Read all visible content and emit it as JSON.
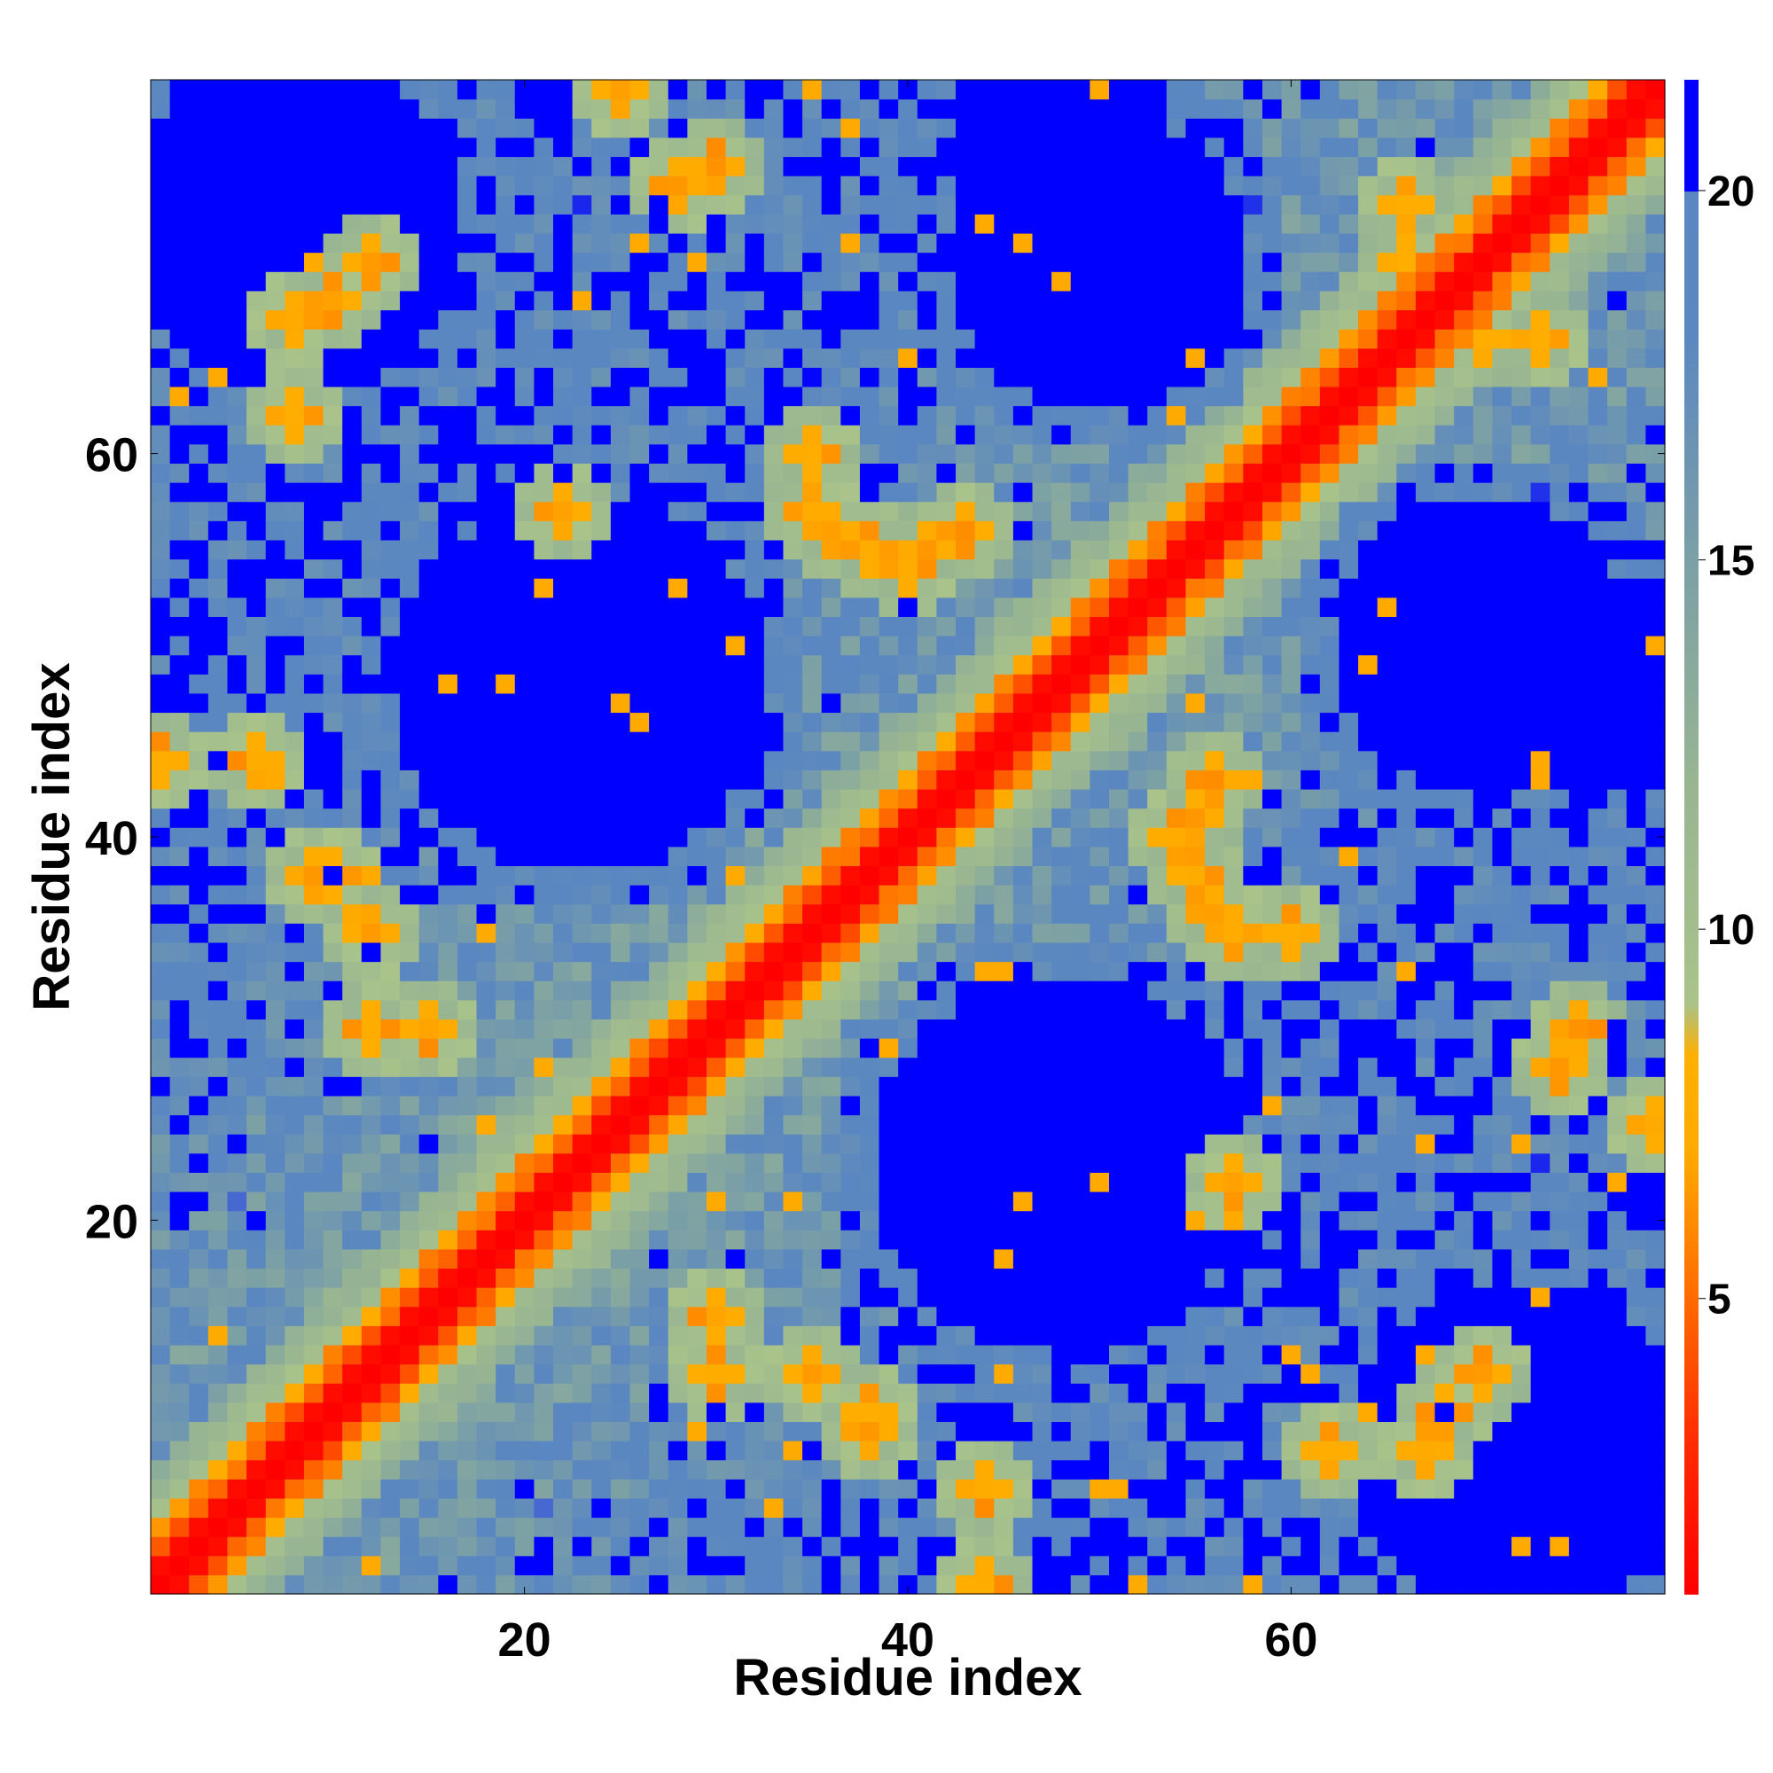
{
  "chart_data": {
    "type": "heatmap",
    "title": "",
    "xlabel": "Residue index",
    "ylabel": "Residue index",
    "n_residues": 79,
    "xlim": [
      1,
      79
    ],
    "ylim": [
      1,
      79
    ],
    "x_ticks": [
      20,
      40,
      60
    ],
    "y_ticks": [
      20,
      40,
      60
    ],
    "x_tick_labels": [
      "20",
      "40",
      "60"
    ],
    "y_tick_labels": [
      "20",
      "40",
      "60"
    ],
    "symmetric": true,
    "values_description_note": "",
    "colorbar": {
      "min": 1,
      "max": 21.5,
      "ticks": [
        5,
        10,
        15,
        20
      ],
      "tick_labels": [
        "5",
        "10",
        "15",
        "20"
      ],
      "saturate_above": 20,
      "colors": {
        "contact": "#ff0000",
        "near": "#ff6600",
        "close": "#ffa500",
        "mid": "#a3bf86",
        "far": "#5c88c0",
        "very_far": "#0000ff"
      },
      "stops": [
        {
          "value": 1,
          "color": "#ff0000"
        },
        {
          "value": 3,
          "color": "#ff2a00"
        },
        {
          "value": 5,
          "color": "#ff6a00"
        },
        {
          "value": 7,
          "color": "#ffaa00"
        },
        {
          "value": 8.3,
          "color": "#ffb000"
        },
        {
          "value": 9,
          "color": "#a9c38a"
        },
        {
          "value": 12,
          "color": "#98b592"
        },
        {
          "value": 15,
          "color": "#7ba0a6"
        },
        {
          "value": 18,
          "color": "#5c88c0"
        },
        {
          "value": 20,
          "color": "#5a86c2"
        },
        {
          "value": 20.01,
          "color": "#0000ff"
        },
        {
          "value": 21.5,
          "color": "#0000ff"
        }
      ]
    },
    "cluster_centers": [
      {
        "i": 23,
        "j": 48,
        "radius": 10
      },
      {
        "i": 48,
        "j": 23,
        "radius": 10
      },
      {
        "i": 50,
        "j": 70,
        "radius": 8
      },
      {
        "i": 70,
        "j": 50,
        "radius": 8
      },
      {
        "i": 8,
        "j": 72,
        "radius": 9
      },
      {
        "i": 72,
        "j": 8,
        "radius": 9
      },
      {
        "i": 48,
        "j": 76,
        "radius": 6
      },
      {
        "i": 76,
        "j": 48,
        "radius": 6
      }
    ],
    "contacts": [
      {
        "i": 35,
        "j": 57
      },
      {
        "i": 36,
        "j": 56
      },
      {
        "i": 38,
        "j": 55
      },
      {
        "i": 41,
        "j": 55
      },
      {
        "i": 43,
        "j": 56
      },
      {
        "i": 10,
        "j": 68
      },
      {
        "i": 8,
        "j": 67
      },
      {
        "i": 12,
        "j": 70
      },
      {
        "i": 30,
        "j": 75
      },
      {
        "i": 25,
        "j": 79
      },
      {
        "i": 6,
        "j": 44
      },
      {
        "i": 9,
        "j": 38
      },
      {
        "i": 12,
        "j": 35
      },
      {
        "i": 15,
        "j": 30
      },
      {
        "i": 30,
        "j": 12
      },
      {
        "i": 38,
        "j": 10
      },
      {
        "i": 44,
        "j": 1
      },
      {
        "i": 66,
        "j": 73
      },
      {
        "i": 70,
        "j": 66
      },
      {
        "i": 62,
        "j": 8
      },
      {
        "i": 57,
        "j": 22
      },
      {
        "i": 54,
        "j": 40
      },
      {
        "i": 60,
        "j": 35
      },
      {
        "i": 74,
        "j": 28
      }
    ]
  }
}
